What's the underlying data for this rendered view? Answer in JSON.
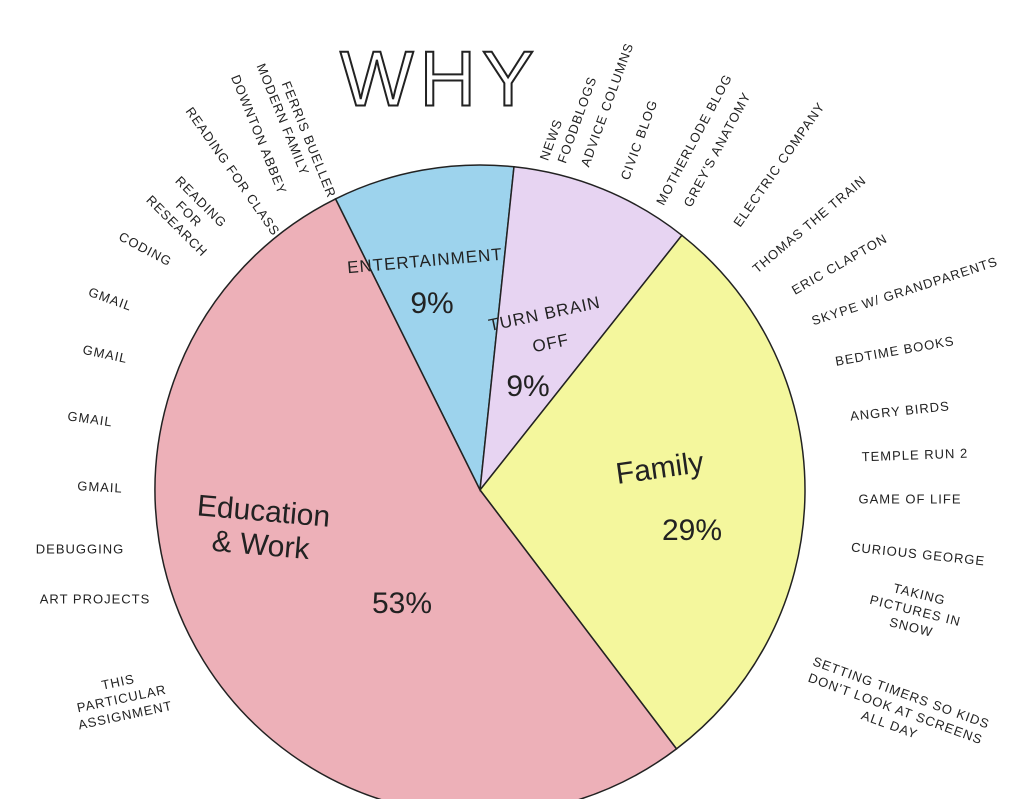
{
  "chart_data": {
    "type": "pie",
    "title": "WHY",
    "categories": [
      "ENTERTAINMENT",
      "TURN BRAIN OFF",
      "Family",
      "Education & Work"
    ],
    "values": [
      9,
      9,
      29,
      53
    ],
    "value_labels": [
      "9%",
      "9%",
      "29%",
      "53%"
    ],
    "colors": [
      "#8ccbea",
      "#e3cdf0",
      "#f2f68c",
      "#eaa2ab"
    ],
    "notes": [
      [
        "DOWNTON ABBEY",
        "MODERN FAMILY",
        "FERRIS BUELLER"
      ],
      [
        "NEWS",
        "FOODBLOGS",
        "ADVICE COLUMNS",
        "CIVIC BLOG",
        "MOTHERLODE BLOG",
        "GREY'S ANATOMY"
      ],
      [
        "ELECTRIC COMPANY",
        "THOMAS THE TRAIN",
        "ERIC CLAPTON",
        "SKYPE W/ GRANDPARENTS",
        "BEDTIME BOOKS",
        "ANGRY BIRDS",
        "TEMPLE RUN 2",
        "GAME OF LIFE",
        "CURIOUS GEORGE",
        "TAKING PICTURES IN SNOW",
        "SETTING TIMERS SO KIDS DON'T LOOK AT SCREENS ALL DAY"
      ],
      [
        "READING FOR CLASS",
        "READING FOR RESEARCH",
        "CODING",
        "GMAIL",
        "GMAIL",
        "GMAIL",
        "GMAIL",
        "DEBUGGING",
        "ART PROJECTS",
        "THIS PARTICULAR ASSIGNMENT"
      ]
    ]
  }
}
